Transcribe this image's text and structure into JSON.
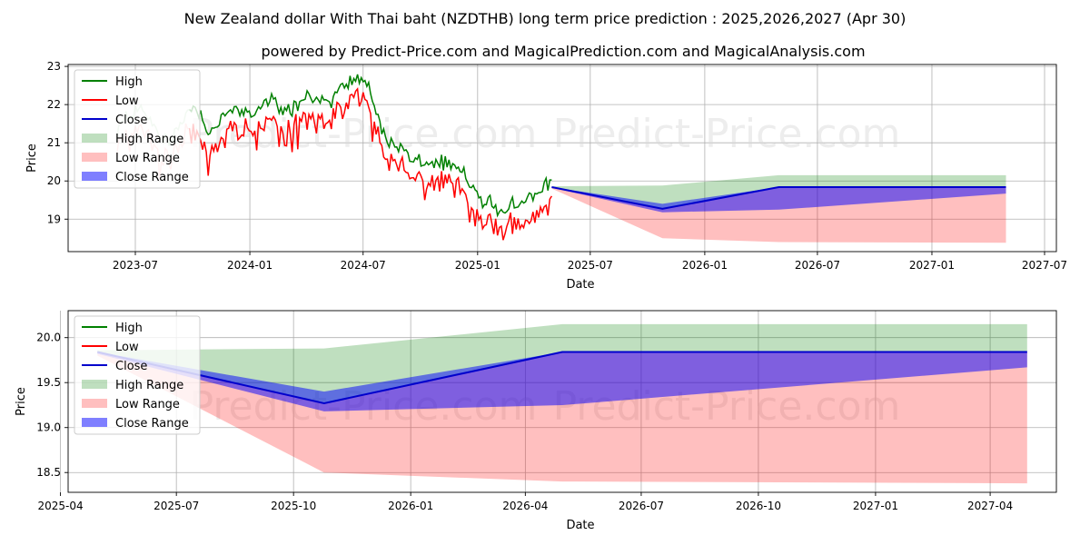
{
  "title": "New Zealand dollar With Thai baht (NZDTHB) long term price prediction : 2025,2026,2027 (Apr 30)",
  "subtitle": "powered by Predict-Price.com and MagicalPrediction.com and MagicalAnalysis.com",
  "watermark": "Predict-Price.com",
  "colors": {
    "high": "#008000",
    "low": "#ff0000",
    "close": "#0000cc",
    "high_range": "#008000",
    "low_range": "#ff0000",
    "close_range": "#0000ff"
  },
  "legend_labels": [
    "High",
    "Low",
    "Close",
    "High Range",
    "Low Range",
    "Close Range"
  ],
  "chart_data": [
    {
      "type": "line",
      "xlabel": "Date",
      "ylabel": "Price",
      "xlim": [
        "2023-03-15",
        "2027-07-20"
      ],
      "ylim": [
        18.15,
        23.05
      ],
      "x_ticks": [
        "2023-07",
        "2024-01",
        "2024-07",
        "2025-01",
        "2025-07",
        "2026-01",
        "2026-07",
        "2027-01",
        "2027-07"
      ],
      "y_ticks": [
        "19",
        "20",
        "21",
        "22",
        "23"
      ],
      "legend_position": "upper-left",
      "grid": true,
      "historical_anchors": {
        "x": [
          "2023-06-01",
          "2023-06-20",
          "2023-07-10",
          "2023-08-01",
          "2023-08-25",
          "2023-09-15",
          "2023-10-05",
          "2023-10-25",
          "2023-11-15",
          "2023-12-10",
          "2024-01-05",
          "2024-02-01",
          "2024-03-01",
          "2024-04-01",
          "2024-05-01",
          "2024-06-01",
          "2024-06-20",
          "2024-07-10",
          "2024-08-01",
          "2024-08-20",
          "2024-09-15",
          "2024-10-15",
          "2024-11-15",
          "2024-12-15",
          "2025-01-10",
          "2025-02-05",
          "2025-03-01",
          "2025-04-01",
          "2025-04-30"
        ],
        "close": [
          21.1,
          21.5,
          21.7,
          21.1,
          20.8,
          21.4,
          21.9,
          21.1,
          21.4,
          21.7,
          21.6,
          21.9,
          21.6,
          22.0,
          21.8,
          22.3,
          22.5,
          22.2,
          21.0,
          20.7,
          20.5,
          20.2,
          20.3,
          19.9,
          19.2,
          19.1,
          19.2,
          19.4,
          19.8
        ]
      },
      "forecast": {
        "x": [
          "2025-04-30",
          "2025-10-25",
          "2026-04-30",
          "2027-04-30"
        ],
        "close": [
          19.84,
          19.27,
          19.84,
          19.84
        ],
        "high_range_top": [
          19.86,
          19.88,
          20.15,
          20.15
        ],
        "low_range_bottom": [
          19.8,
          18.5,
          18.4,
          18.38
        ],
        "close_range_top": [
          19.84,
          19.4,
          19.84,
          19.84
        ],
        "close_range_bottom": [
          19.82,
          19.18,
          19.25,
          19.67
        ]
      }
    },
    {
      "type": "area",
      "xlabel": "Date",
      "ylabel": "Price",
      "xlim": [
        "2025-04-07",
        "2027-05-23"
      ],
      "ylim": [
        18.28,
        20.3
      ],
      "x_ticks": [
        "2025-04",
        "2025-07",
        "2025-10",
        "2026-01",
        "2026-04",
        "2026-07",
        "2026-10",
        "2027-01",
        "2027-04"
      ],
      "y_ticks": [
        "18.5",
        "19.0",
        "19.5",
        "20.0"
      ],
      "legend_position": "upper-left",
      "grid": true,
      "forecast": {
        "x": [
          "2025-04-30",
          "2025-10-25",
          "2026-04-30",
          "2027-04-30"
        ],
        "close": [
          19.84,
          19.27,
          19.84,
          19.84
        ],
        "high_range_top": [
          19.86,
          19.88,
          20.15,
          20.15
        ],
        "low_range_bottom": [
          19.8,
          18.5,
          18.4,
          18.38
        ],
        "close_range_top": [
          19.84,
          19.4,
          19.84,
          19.84
        ],
        "close_range_bottom": [
          19.82,
          19.18,
          19.25,
          19.67
        ]
      }
    }
  ]
}
